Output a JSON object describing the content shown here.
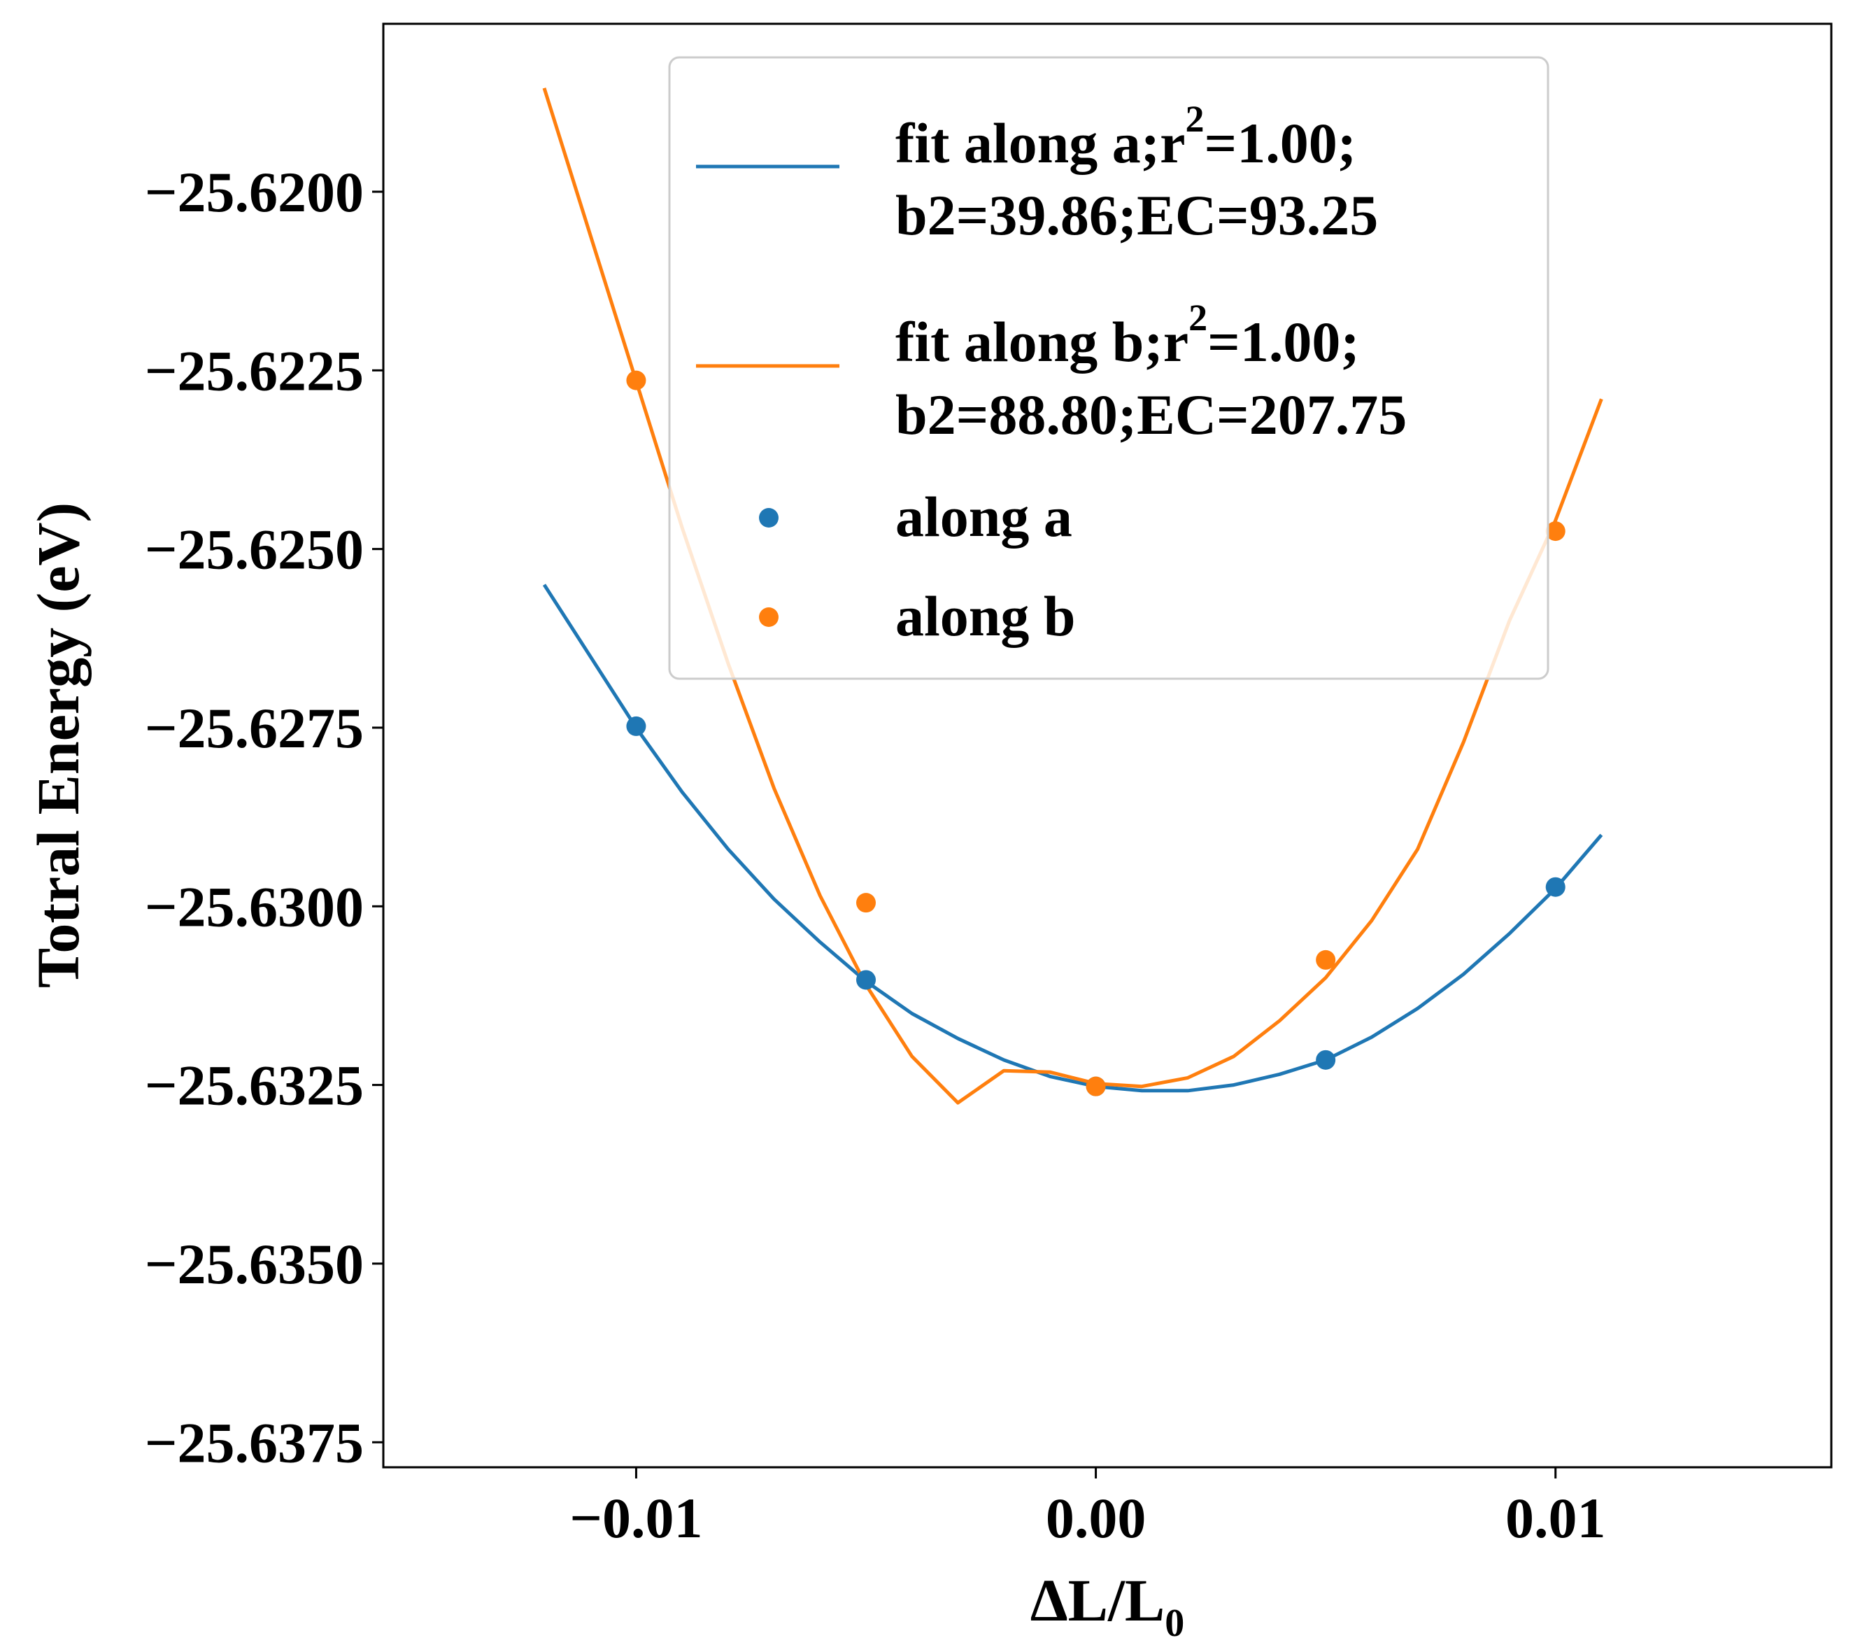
{
  "chart_data": {
    "type": "line+scatter",
    "xlabel": "ΔL/L",
    "xlabel_subscript": "0",
    "ylabel": "Totral Energy (eV)",
    "xlim": [
      -0.0155,
      0.016
    ],
    "ylim": [
      -25.63785,
      -25.61765
    ],
    "x_ticks": [
      -0.01,
      0.0,
      0.01
    ],
    "x_tick_labels": [
      "−0.01",
      "0.00",
      "0.01"
    ],
    "y_ticks": [
      -25.62,
      -25.6225,
      -25.625,
      -25.6275,
      -25.63,
      -25.6325,
      -25.635,
      -25.6375
    ],
    "y_tick_labels": [
      "−25.6200",
      "−25.6225",
      "−25.6250",
      "−25.6275",
      "−25.6300",
      "−25.6325",
      "−25.6350",
      "−25.6375"
    ],
    "grid": false,
    "legend_position": "upper-center",
    "series": [
      {
        "name": "fit along a",
        "kind": "line",
        "color": "#1f77b4",
        "legend_line1": "fit along a;r",
        "legend_sup": "2",
        "legend_line1_rest": "=1.00;",
        "legend_line2": "b2=39.86;EC=93.25",
        "x": [
          -0.012,
          -0.011,
          -0.01,
          -0.009,
          -0.008,
          -0.007,
          -0.006,
          -0.005,
          -0.004,
          -0.003,
          -0.002,
          -0.001,
          0.0,
          0.001,
          0.002,
          0.003,
          0.004,
          0.005,
          0.006,
          0.007,
          0.008,
          0.009,
          0.01,
          0.011
        ],
        "y": [
          -25.6255,
          -25.6265,
          -25.6275,
          -25.6284,
          -25.6292,
          -25.6299,
          -25.6305,
          -25.63105,
          -25.6315,
          -25.63185,
          -25.63215,
          -25.63238,
          -25.63252,
          -25.63258,
          -25.63258,
          -25.6325,
          -25.63235,
          -25.63215,
          -25.63183,
          -25.63143,
          -25.63095,
          -25.63038,
          -25.62975,
          -25.629
        ]
      },
      {
        "name": "fit along b",
        "kind": "line",
        "color": "#ff7f0e",
        "legend_line1": "fit along b;r",
        "legend_sup": "2",
        "legend_line1_rest": "=1.00;",
        "legend_line2": "b2=88.80;EC=207.75",
        "x": [
          -0.012,
          -0.011,
          -0.01,
          -0.009,
          -0.008,
          -0.007,
          -0.006,
          -0.005,
          -0.004,
          -0.003,
          -0.002,
          -0.001,
          0.0,
          0.001,
          0.002,
          0.003,
          0.004,
          0.005,
          0.006,
          0.007,
          0.008,
          0.009,
          0.01,
          0.011
        ],
        "y": [
          -25.61855,
          -25.6206,
          -25.62265,
          -25.6247,
          -25.6266,
          -25.62835,
          -25.62985,
          -25.6311,
          -25.6321,
          -25.63275,
          -25.6323,
          -25.63232,
          -25.63248,
          -25.63252,
          -25.6324,
          -25.6321,
          -25.6316,
          -25.631,
          -25.6302,
          -25.6292,
          -25.6277,
          -25.626,
          -25.6246,
          -25.6229
        ]
      },
      {
        "name": "along a",
        "kind": "scatter",
        "color": "#1f77b4",
        "legend_label": "along a",
        "x": [
          -0.01,
          -0.005,
          0.0,
          0.005,
          0.01
        ],
        "y": [
          -25.62748,
          -25.63103,
          -25.63252,
          -25.63215,
          -25.62973
        ]
      },
      {
        "name": "along b",
        "kind": "scatter",
        "color": "#ff7f0e",
        "legend_label": "along b",
        "x": [
          -0.01,
          -0.005,
          0.0,
          0.005,
          0.01
        ],
        "y": [
          -25.62264,
          -25.62995,
          -25.63252,
          -25.63075,
          -25.62475
        ]
      }
    ]
  }
}
